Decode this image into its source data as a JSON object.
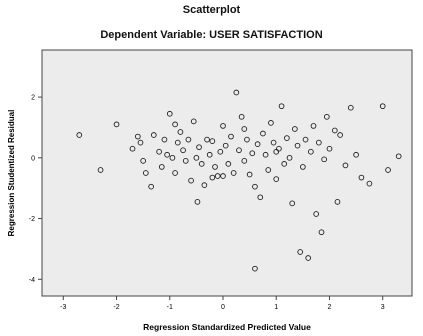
{
  "chart_data": {
    "type": "scatter",
    "title": "Scatterplot",
    "subtitle": "Dependent Variable: USER SATISFACTION",
    "xlabel": "Regression Standardized Predicted Value",
    "ylabel": "Regression Studentized Residual",
    "xlim": [
      -3.4,
      3.55
    ],
    "ylim": [
      -4.55,
      3.55
    ],
    "xticks": [
      "-3",
      "-2",
      "-1",
      "0",
      "1",
      "2",
      "3"
    ],
    "xtick_values": [
      -3,
      -2,
      -1,
      0,
      1,
      2,
      3
    ],
    "yticks": [
      "2",
      "0",
      "-2",
      "-4"
    ],
    "ytick_values": [
      2,
      0,
      -2,
      -4
    ],
    "grid": false,
    "plot_background": "#ececec",
    "marker_color": "#222222",
    "points": [
      [
        -2.7,
        0.75
      ],
      [
        -2.3,
        -0.4
      ],
      [
        -2.0,
        1.1
      ],
      [
        -1.7,
        0.3
      ],
      [
        -1.55,
        0.5
      ],
      [
        -1.5,
        -0.1
      ],
      [
        -1.45,
        -0.5
      ],
      [
        -1.35,
        -0.95
      ],
      [
        -1.3,
        0.75
      ],
      [
        -1.2,
        0.2
      ],
      [
        -1.15,
        -0.3
      ],
      [
        -1.1,
        0.6
      ],
      [
        -1.05,
        0.1
      ],
      [
        -1.0,
        1.45
      ],
      [
        -0.95,
        0.0
      ],
      [
        -0.9,
        -0.5
      ],
      [
        -0.85,
        0.5
      ],
      [
        -0.8,
        0.85
      ],
      [
        -0.75,
        0.25
      ],
      [
        -0.7,
        -0.1
      ],
      [
        -0.65,
        0.6
      ],
      [
        -0.6,
        -0.75
      ],
      [
        -0.55,
        1.2
      ],
      [
        -0.5,
        0.0
      ],
      [
        -0.48,
        -1.45
      ],
      [
        -0.45,
        0.35
      ],
      [
        -0.4,
        -0.2
      ],
      [
        -0.35,
        -0.9
      ],
      [
        -0.3,
        0.6
      ],
      [
        -0.25,
        0.1
      ],
      [
        -0.2,
        0.55
      ],
      [
        -0.15,
        -0.3
      ],
      [
        -0.1,
        -0.6
      ],
      [
        -0.05,
        0.2
      ],
      [
        0.0,
        1.05
      ],
      [
        0.05,
        0.4
      ],
      [
        0.1,
        -0.2
      ],
      [
        0.15,
        0.7
      ],
      [
        0.2,
        -0.5
      ],
      [
        0.25,
        2.15
      ],
      [
        0.3,
        0.25
      ],
      [
        0.35,
        1.35
      ],
      [
        0.4,
        -0.1
      ],
      [
        0.45,
        0.6
      ],
      [
        0.5,
        -0.55
      ],
      [
        0.55,
        0.15
      ],
      [
        0.6,
        -0.95
      ],
      [
        0.65,
        0.45
      ],
      [
        0.7,
        -1.3
      ],
      [
        0.75,
        0.8
      ],
      [
        0.8,
        0.1
      ],
      [
        0.85,
        -0.4
      ],
      [
        0.9,
        1.15
      ],
      [
        0.95,
        0.5
      ],
      [
        1.0,
        -0.7
      ],
      [
        1.05,
        0.3
      ],
      [
        1.1,
        1.7
      ],
      [
        1.15,
        -0.2
      ],
      [
        1.2,
        0.65
      ],
      [
        1.25,
        0.0
      ],
      [
        1.3,
        -1.5
      ],
      [
        1.35,
        0.95
      ],
      [
        1.4,
        0.4
      ],
      [
        1.45,
        -3.1
      ],
      [
        1.5,
        -0.3
      ],
      [
        1.55,
        0.6
      ],
      [
        1.6,
        -3.3
      ],
      [
        1.65,
        0.2
      ],
      [
        1.7,
        1.05
      ],
      [
        1.75,
        -1.85
      ],
      [
        1.8,
        0.5
      ],
      [
        1.85,
        -2.45
      ],
      [
        1.9,
        -0.05
      ],
      [
        1.95,
        1.35
      ],
      [
        2.0,
        0.3
      ],
      [
        2.1,
        0.9
      ],
      [
        2.15,
        -1.45
      ],
      [
        2.2,
        0.75
      ],
      [
        2.3,
        -0.25
      ],
      [
        2.4,
        1.65
      ],
      [
        2.5,
        0.1
      ],
      [
        2.6,
        -0.65
      ],
      [
        2.75,
        -0.85
      ],
      [
        3.0,
        1.7
      ],
      [
        3.1,
        -0.4
      ],
      [
        3.3,
        0.05
      ],
      [
        -0.9,
        1.1
      ],
      [
        -0.2,
        -0.65
      ],
      [
        0.4,
        0.95
      ],
      [
        1.0,
        0.2
      ],
      [
        -1.6,
        0.7
      ],
      [
        0.0,
        -0.6
      ],
      [
        0.6,
        -3.65
      ]
    ]
  }
}
